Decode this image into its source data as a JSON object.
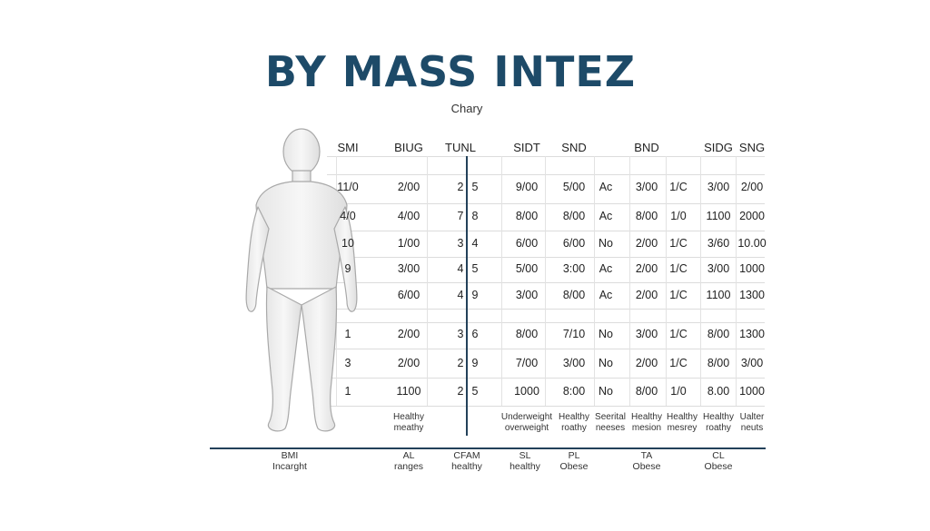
{
  "title": "BY MASS INTEZ",
  "subtitle": "Chary",
  "icons": {
    "figure": "human-body-figure"
  },
  "colors": {
    "title": "#1d4a68",
    "axis": "#23415a",
    "grid": "#dcdcdc"
  },
  "chart_data": {
    "type": "table",
    "columns": [
      "SMI",
      "BIUG",
      "TUNL",
      "",
      "SIDT",
      "SND",
      "",
      "BND",
      "",
      "SIDG",
      "SNG"
    ],
    "rows": [
      [
        "11/0",
        "2/00",
        "2",
        "5",
        "9/00",
        "5/00",
        "Ac",
        "3/00",
        "1/C",
        "3/00",
        "2/00"
      ],
      [
        "4/0",
        "4/00",
        "7",
        "8",
        "8/00",
        "8/00",
        "Ac",
        "8/00",
        "1/0",
        "1100",
        "2000"
      ],
      [
        "10",
        "1/00",
        "3",
        "4",
        "6/00",
        "6/00",
        "No",
        "2/00",
        "1/C",
        "3/60",
        "10.00"
      ],
      [
        "9",
        "3/00",
        "4",
        "5",
        "5/00",
        "3:00",
        "Ac",
        "2/00",
        "1/C",
        "3/00",
        "1000"
      ],
      [
        "",
        "6/00",
        "4",
        "9",
        "3/00",
        "8/00",
        "Ac",
        "2/00",
        "1/C",
        "1100",
        "1300"
      ],
      [
        "1",
        "2/00",
        "3",
        "6",
        "8/00",
        "7/10",
        "No",
        "3/00",
        "1/C",
        "8/00",
        "1300"
      ],
      [
        "3",
        "2/00",
        "2",
        "9",
        "7/00",
        "3/00",
        "No",
        "2/00",
        "1/C",
        "8/00",
        "3/00"
      ],
      [
        "1",
        "1100",
        "2",
        "5",
        "1000",
        "8:00",
        "No",
        "8/00",
        "1/0",
        "8.00",
        "1000"
      ]
    ],
    "notes": [
      "Healthy\nmeathy",
      "Underweight\noverweight",
      "Healthy\nroathy",
      "Seerital\nneeses",
      "Healthy\nmesion",
      "Healthy\nmesrey",
      "Healthy\nroathy",
      "Ualter\nneuts"
    ],
    "footer": [
      "BMI\nIncarght",
      "AL\nranges",
      "CFAM\nhealthy",
      "SL\nhealthy",
      "PL\nObese",
      "TA\nObese",
      "CL\nObese"
    ]
  }
}
